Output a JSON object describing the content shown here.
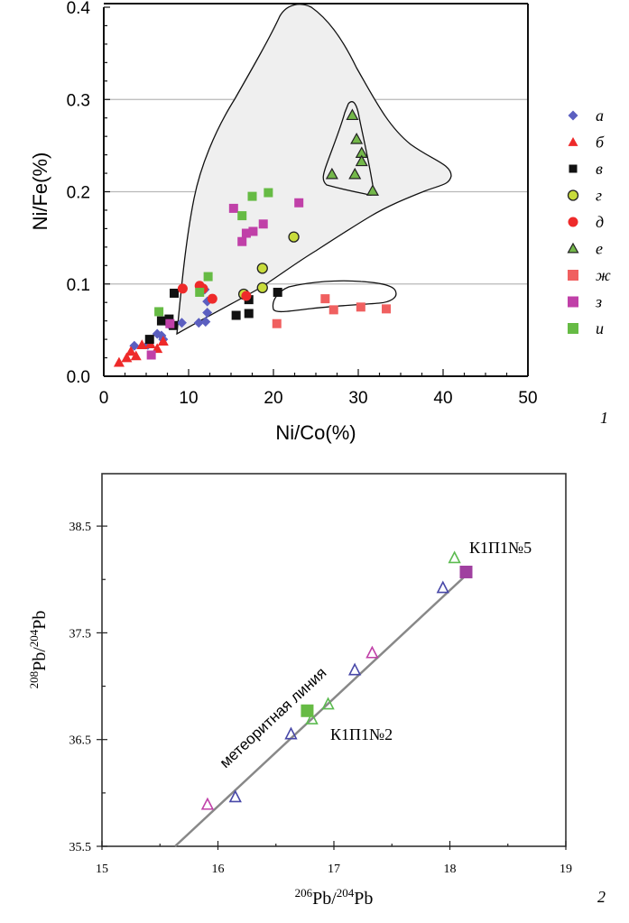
{
  "chart_data": [
    {
      "type": "scatter",
      "panel_label": "1",
      "title": "",
      "xlabel": "Ni/Co(%)",
      "ylabel": "Ni/Fe(%)",
      "xlim": [
        0,
        50
      ],
      "ylim": [
        0,
        0.4
      ],
      "x_ticks": [
        "0",
        "10",
        "20",
        "30",
        "40",
        "50"
      ],
      "y_ticks": [
        "0.0",
        "0.1",
        "0.2",
        "0.3",
        "0.4"
      ],
      "grid": "horizontal at 0.1, 0.2, 0.3",
      "legend_position": "right",
      "colors": {
        "blue": "#5b5fc0",
        "red": "#ee2a2a",
        "black": "#111111",
        "yellowgreen": "#c8dc3c",
        "green": "#74b84a",
        "salmon": "#f06060",
        "magenta": "#c040a8",
        "lightgreen": "#66bb44",
        "field": "#efefef"
      },
      "series": [
        {
          "name": "а",
          "marker": "diamond",
          "color": "#5b5fc0",
          "points": [
            [
              3.6,
              0.033
            ],
            [
              5.2,
              0.034
            ],
            [
              6.3,
              0.046
            ],
            [
              6.8,
              0.044
            ],
            [
              7.0,
              0.04
            ],
            [
              7.7,
              0.056
            ],
            [
              9.2,
              0.058
            ],
            [
              11.2,
              0.058
            ],
            [
              12.0,
              0.059
            ],
            [
              12.2,
              0.069
            ],
            [
              12.2,
              0.081
            ],
            [
              11.9,
              0.094
            ]
          ]
        },
        {
          "name": "б",
          "marker": "triangle",
          "color": "#ee2a2a",
          "points": [
            [
              1.8,
              0.015
            ],
            [
              2.7,
              0.02
            ],
            [
              3.2,
              0.027
            ],
            [
              3.8,
              0.022
            ],
            [
              4.5,
              0.034
            ],
            [
              5.5,
              0.035
            ],
            [
              6.3,
              0.03
            ],
            [
              7.0,
              0.038
            ]
          ]
        },
        {
          "name": "в",
          "marker": "square",
          "color": "#111111",
          "points": [
            [
              5.4,
              0.04
            ],
            [
              6.8,
              0.06
            ],
            [
              7.7,
              0.062
            ],
            [
              8.2,
              0.055
            ],
            [
              8.3,
              0.09
            ],
            [
              15.6,
              0.066
            ],
            [
              17.1,
              0.068
            ],
            [
              17.1,
              0.083
            ],
            [
              20.5,
              0.091
            ]
          ]
        },
        {
          "name": "г",
          "marker": "circle",
          "color": "#c8dc3c",
          "points": [
            [
              16.5,
              0.089
            ],
            [
              18.7,
              0.096
            ],
            [
              18.7,
              0.117
            ],
            [
              22.4,
              0.151
            ]
          ]
        },
        {
          "name": "д",
          "marker": "circle",
          "color": "#ee2a2a",
          "points": [
            [
              9.3,
              0.095
            ],
            [
              11.3,
              0.098
            ],
            [
              11.7,
              0.095
            ],
            [
              12.8,
              0.084
            ],
            [
              16.8,
              0.087
            ]
          ]
        },
        {
          "name": "е",
          "marker": "triangle",
          "color": "#74b84a",
          "points": [
            [
              26.9,
              0.219
            ],
            [
              29.3,
              0.283
            ],
            [
              29.8,
              0.257
            ],
            [
              30.4,
              0.242
            ],
            [
              30.4,
              0.233
            ],
            [
              29.6,
              0.219
            ],
            [
              31.7,
              0.201
            ]
          ]
        },
        {
          "name": "ж",
          "marker": "square",
          "color": "#f06060",
          "points": [
            [
              20.4,
              0.057
            ],
            [
              26.1,
              0.084
            ],
            [
              27.1,
              0.072
            ],
            [
              30.3,
              0.075
            ],
            [
              33.3,
              0.073
            ]
          ]
        },
        {
          "name": "з",
          "marker": "square",
          "color": "#c040a8",
          "points": [
            [
              5.6,
              0.023
            ],
            [
              7.8,
              0.057
            ],
            [
              15.3,
              0.182
            ],
            [
              16.3,
              0.146
            ],
            [
              16.8,
              0.155
            ],
            [
              17.6,
              0.157
            ],
            [
              18.8,
              0.165
            ],
            [
              23.0,
              0.188
            ]
          ]
        },
        {
          "name": "и",
          "marker": "square",
          "color": "#66bb44",
          "points": [
            [
              6.5,
              0.07
            ],
            [
              11.3,
              0.091
            ],
            [
              12.3,
              0.108
            ],
            [
              16.3,
              0.174
            ],
            [
              17.5,
              0.195
            ],
            [
              19.4,
              0.199
            ]
          ]
        }
      ],
      "fields": [
        {
          "name": "large field",
          "fill": "#efefef"
        },
        {
          "name": "е field",
          "fill": "#efefef"
        },
        {
          "name": "ж field",
          "fill": "none"
        }
      ]
    },
    {
      "type": "scatter",
      "panel_label": "2",
      "title": "",
      "xlabel": {
        "sup1": "206",
        "base1": "Pb",
        "sep": "/",
        "sup2": "204",
        "base2": "Pb"
      },
      "ylabel": {
        "sup1": "208",
        "base1": "Pb",
        "sep": "/",
        "sup2": "204",
        "base2": "Pb"
      },
      "xlim": [
        15,
        19
      ],
      "ylim": [
        35.5,
        39.0
      ],
      "x_ticks": [
        "15",
        "16",
        "17",
        "18",
        "19"
      ],
      "y_ticks": [
        "35.5",
        "36.5",
        "37.5",
        "38.5"
      ],
      "grid": "off",
      "reference_line": {
        "label": "метеоритная линия",
        "x": [
          15.63,
          18.12
        ],
        "y": [
          35.5,
          38.02
        ],
        "color": "#888888"
      },
      "series": [
        {
          "name": "blue open triangles",
          "marker": "open-triangle",
          "color": "#4848a8",
          "points": [
            [
              16.15,
              35.96
            ],
            [
              16.63,
              36.55
            ],
            [
              17.18,
              37.15
            ],
            [
              17.94,
              37.92
            ]
          ]
        },
        {
          "name": "green open triangles",
          "marker": "open-triangle",
          "color": "#5cbb50",
          "points": [
            [
              16.81,
              36.69
            ],
            [
              16.95,
              36.83
            ],
            [
              18.04,
              38.2
            ]
          ]
        },
        {
          "name": "magenta open triangles",
          "marker": "open-triangle",
          "color": "#c040a8",
          "points": [
            [
              15.91,
              35.89
            ],
            [
              17.33,
              37.31
            ]
          ]
        },
        {
          "name": "К1П1№2",
          "marker": "square",
          "color": "#66bb44",
          "points": [
            [
              16.77,
              36.77
            ]
          ]
        },
        {
          "name": "К1П1№5",
          "marker": "square",
          "color": "#a040a0",
          "points": [
            [
              18.14,
              38.07
            ]
          ]
        }
      ],
      "annotations": [
        "К1П1№5",
        "К1П1№2"
      ]
    }
  ]
}
